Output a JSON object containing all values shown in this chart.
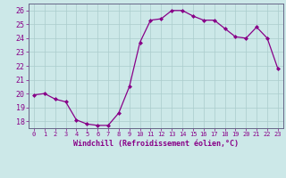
{
  "x": [
    0,
    1,
    2,
    3,
    4,
    5,
    6,
    7,
    8,
    9,
    10,
    11,
    12,
    13,
    14,
    15,
    16,
    17,
    18,
    19,
    20,
    21,
    22,
    23
  ],
  "y": [
    19.9,
    20.0,
    19.6,
    19.4,
    18.1,
    17.8,
    17.7,
    17.7,
    18.6,
    20.5,
    23.7,
    25.3,
    25.4,
    26.0,
    26.0,
    25.6,
    25.3,
    25.3,
    24.7,
    24.1,
    24.0,
    24.8,
    24.0,
    21.8
  ],
  "line_color": "#880088",
  "marker": "D",
  "marker_size": 2.0,
  "bg_color": "#cce8e8",
  "grid_color": "#aacccc",
  "xlabel": "Windchill (Refroidissement éolien,°C)",
  "ylim": [
    17.5,
    26.5
  ],
  "xlim": [
    -0.5,
    23.5
  ],
  "yticks": [
    18,
    19,
    20,
    21,
    22,
    23,
    24,
    25,
    26
  ],
  "xtick_labels": [
    "0",
    "1",
    "2",
    "3",
    "4",
    "5",
    "6",
    "7",
    "8",
    "9",
    "10",
    "11",
    "12",
    "13",
    "14",
    "15",
    "16",
    "17",
    "18",
    "19",
    "20",
    "21",
    "22",
    "23"
  ],
  "spine_color": "#666688",
  "label_color": "#880088",
  "tick_color": "#880088",
  "font_size_ticks": 5,
  "font_size_xlabel": 6
}
